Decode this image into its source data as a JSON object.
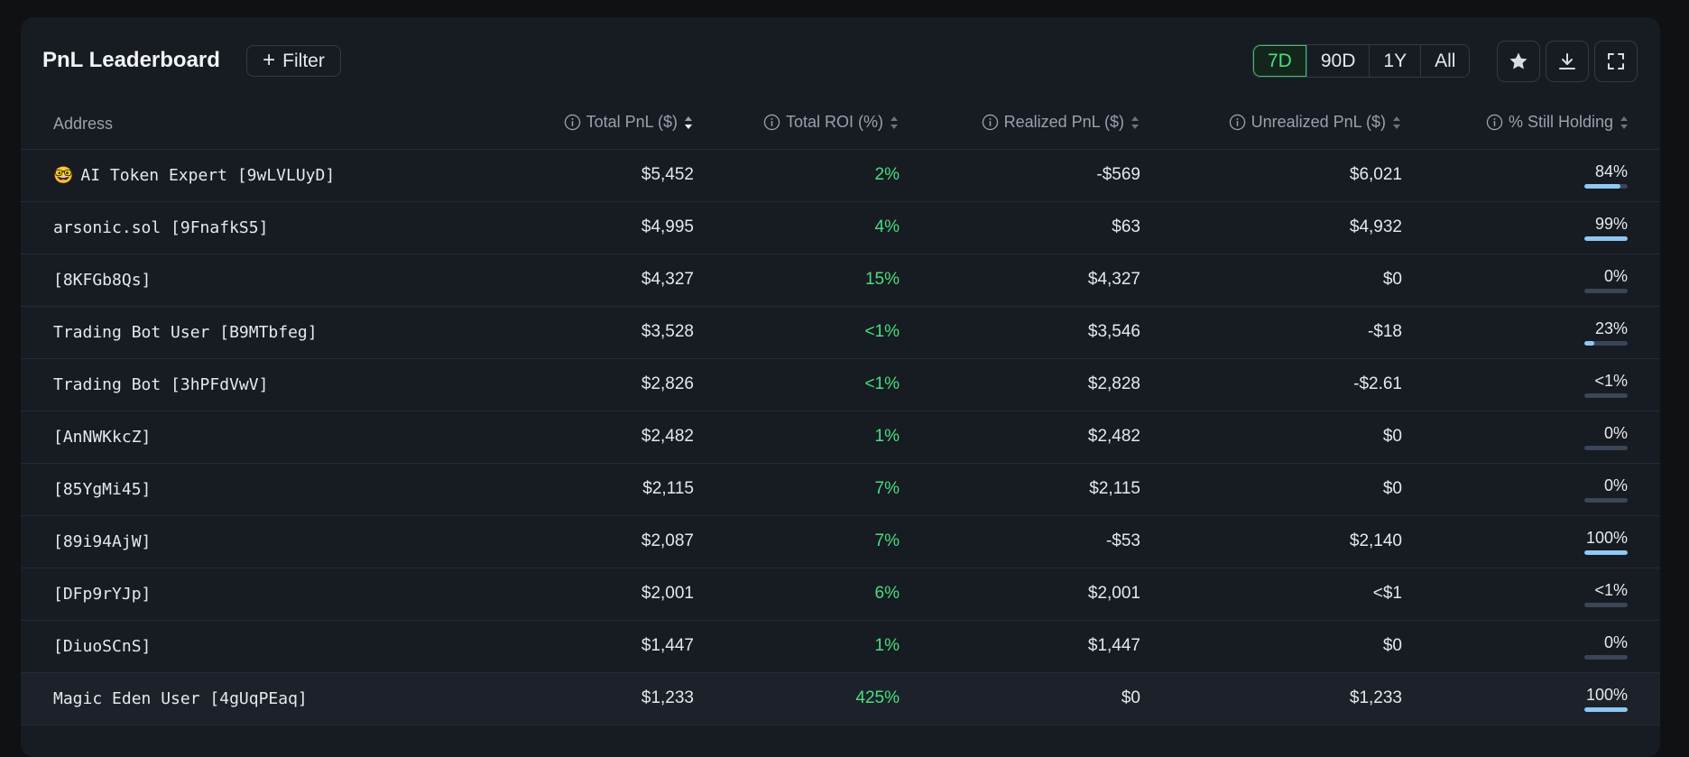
{
  "header": {
    "title": "PnL Leaderboard",
    "filter_label": "Filter",
    "ranges": [
      "7D",
      "90D",
      "1Y",
      "All"
    ],
    "active_range": "7D"
  },
  "columns": {
    "address": "Address",
    "total_pnl": "Total PnL ($)",
    "total_roi": "Total ROI (%)",
    "realized_pnl": "Realized PnL ($)",
    "unrealized_pnl": "Unrealized PnL ($)",
    "still_holding": "% Still Holding"
  },
  "rows": [
    {
      "emoji": "🤓",
      "address": "AI Token Expert [9wLVLUyD]",
      "total_pnl": "$5,452",
      "total_roi": "2%",
      "realized_pnl": "-$569",
      "unrealized_pnl": "$6,021",
      "still_holding": "84%",
      "hold_fraction": 0.84
    },
    {
      "address": "arsonic.sol [9FnafkS5]",
      "total_pnl": "$4,995",
      "total_roi": "4%",
      "realized_pnl": "$63",
      "unrealized_pnl": "$4,932",
      "still_holding": "99%",
      "hold_fraction": 0.99
    },
    {
      "address": "[8KFGb8Qs]",
      "total_pnl": "$4,327",
      "total_roi": "15%",
      "realized_pnl": "$4,327",
      "unrealized_pnl": "$0",
      "still_holding": "0%",
      "hold_fraction": 0
    },
    {
      "address": "Trading Bot User [B9MTbfeg]",
      "total_pnl": "$3,528",
      "total_roi": "<1%",
      "realized_pnl": "$3,546",
      "unrealized_pnl": "-$18",
      "still_holding": "23%",
      "hold_fraction": 0.23
    },
    {
      "address": "Trading Bot [3hPFdVwV]",
      "total_pnl": "$2,826",
      "total_roi": "<1%",
      "realized_pnl": "$2,828",
      "unrealized_pnl": "-$2.61",
      "still_holding": "<1%",
      "hold_fraction": 0
    },
    {
      "address": "[AnNWKkcZ]",
      "total_pnl": "$2,482",
      "total_roi": "1%",
      "realized_pnl": "$2,482",
      "unrealized_pnl": "$0",
      "still_holding": "0%",
      "hold_fraction": 0
    },
    {
      "address": "[85YgMi45]",
      "total_pnl": "$2,115",
      "total_roi": "7%",
      "realized_pnl": "$2,115",
      "unrealized_pnl": "$0",
      "still_holding": "0%",
      "hold_fraction": 0
    },
    {
      "address": "[89i94AjW]",
      "total_pnl": "$2,087",
      "total_roi": "7%",
      "realized_pnl": "-$53",
      "unrealized_pnl": "$2,140",
      "still_holding": "100%",
      "hold_fraction": 1
    },
    {
      "address": "[DFp9rYJp]",
      "total_pnl": "$2,001",
      "total_roi": "6%",
      "realized_pnl": "$2,001",
      "unrealized_pnl": "<$1",
      "still_holding": "<1%",
      "hold_fraction": 0
    },
    {
      "address": "[DiuoSCnS]",
      "total_pnl": "$1,447",
      "total_roi": "1%",
      "realized_pnl": "$1,447",
      "unrealized_pnl": "$0",
      "still_holding": "0%",
      "hold_fraction": 0
    },
    {
      "address": "Magic Eden User [4gUqPEaq]",
      "total_pnl": "$1,233",
      "total_roi": "425%",
      "realized_pnl": "$0",
      "unrealized_pnl": "$1,233",
      "still_holding": "100%",
      "hold_fraction": 1,
      "highlighted": true
    }
  ],
  "colors": {
    "positive": "#4ade80",
    "bar_fill": "#8fc8f4",
    "bar_track": "#3a4656"
  },
  "icons": {
    "favorite": "star-icon",
    "download": "download-icon",
    "fullscreen": "fullscreen-icon",
    "info": "info-icon",
    "sort": "sort-icon"
  }
}
